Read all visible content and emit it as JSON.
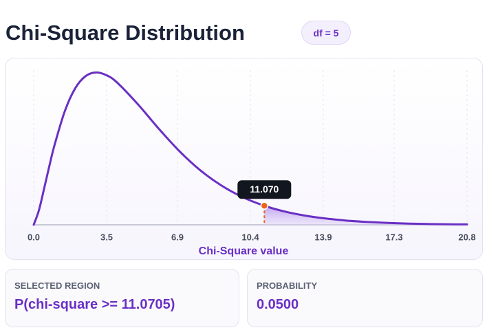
{
  "title": "Chi-Square Distribution",
  "badge": "df = 5",
  "chart_data": {
    "type": "line",
    "x_label": "Chi-Square value",
    "x": [
      0,
      0.25,
      0.5,
      0.75,
      1,
      1.5,
      2,
      2.5,
      3,
      3.5,
      4,
      5,
      6,
      7,
      8,
      9,
      10,
      11,
      12,
      13,
      14,
      15,
      16,
      17,
      18,
      19,
      20,
      20.8
    ],
    "values": [
      0,
      0.0147,
      0.0367,
      0.0594,
      0.0807,
      0.1154,
      0.1384,
      0.1506,
      0.1542,
      0.1513,
      0.144,
      0.122,
      0.0973,
      0.0744,
      0.0551,
      0.0399,
      0.0283,
      0.0198,
      0.0137,
      0.0094,
      0.0064,
      0.0043,
      0.0029,
      0.0019,
      0.0012,
      0.0008,
      0.0005,
      0.0004
    ],
    "color": "#6a2fc4",
    "xlim": [
      0,
      20.8
    ],
    "ylim": [
      0,
      0.16
    ],
    "xticks": [
      {
        "value": 0,
        "label": "0.0"
      },
      3.5,
      6.9,
      10.4,
      13.9,
      17.3,
      20.8
    ],
    "grid": true,
    "critical": {
      "x": 11.0705,
      "x_label": "11.070",
      "y": 0.0193,
      "color": "#e8651a"
    }
  },
  "cards": [
    {
      "label": "SELECTED REGION",
      "value": "P(chi-square >= 11.0705)"
    },
    {
      "label": "PROBABILITY",
      "value": "0.0500"
    }
  ]
}
